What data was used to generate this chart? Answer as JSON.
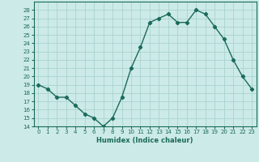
{
  "x": [
    0,
    1,
    2,
    3,
    4,
    5,
    6,
    7,
    8,
    9,
    10,
    11,
    12,
    13,
    14,
    15,
    16,
    17,
    18,
    19,
    20,
    21,
    22,
    23
  ],
  "y": [
    19,
    18.5,
    17.5,
    17.5,
    16.5,
    15.5,
    15,
    14,
    15,
    17.5,
    21,
    23.5,
    26.5,
    27,
    27.5,
    26.5,
    26.5,
    28,
    27.5,
    26,
    24.5,
    22,
    20,
    18.5
  ],
  "line_color": "#1a6b5a",
  "marker": "D",
  "marker_size": 2.2,
  "bg_color": "#cceae7",
  "grid_color": "#aad4d0",
  "tick_color": "#1a6b5a",
  "xlabel": "Humidex (Indice chaleur)",
  "ylim": [
    14,
    29
  ],
  "xlim": [
    -0.5,
    23.5
  ],
  "yticks": [
    14,
    15,
    16,
    17,
    18,
    19,
    20,
    21,
    22,
    23,
    24,
    25,
    26,
    27,
    28
  ],
  "xticks": [
    0,
    1,
    2,
    3,
    4,
    5,
    6,
    7,
    8,
    9,
    10,
    11,
    12,
    13,
    14,
    15,
    16,
    17,
    18,
    19,
    20,
    21,
    22,
    23
  ]
}
